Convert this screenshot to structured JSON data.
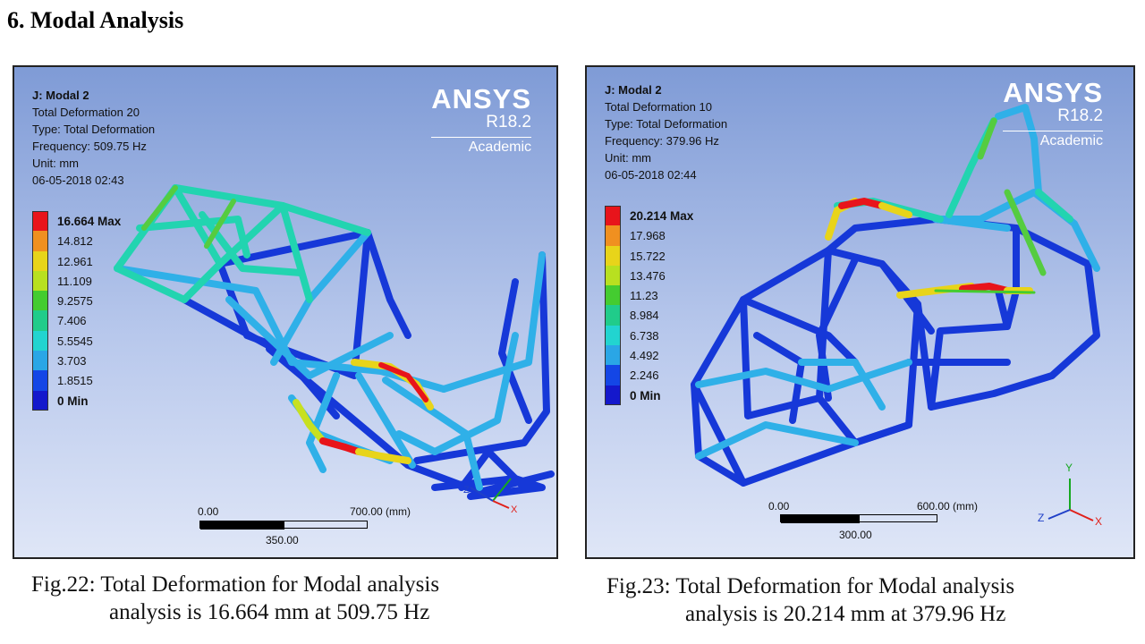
{
  "heading": "6. Modal Analysis",
  "figures": [
    {
      "info": [
        "J: Modal 2",
        "Total Deformation 20",
        "Type: Total Deformation",
        "Frequency: 509.75 Hz",
        "Unit: mm",
        "06-05-2018 02:43"
      ],
      "brand": {
        "name": "ANSYS",
        "release": "R18.2",
        "edition": "Academic"
      },
      "legend": [
        "16.664 Max",
        "14.812",
        "12.961",
        "11.109",
        "9.2575",
        "7.406",
        "5.5545",
        "3.703",
        "1.8515",
        "0 Min"
      ],
      "scale": {
        "start": "0.00",
        "end": "700.00 (mm)",
        "mid": "350.00"
      },
      "caption": [
        "Fig.22: Total Deformation for Modal analysis",
        "analysis is 16.664 mm at 509.75 Hz"
      ]
    },
    {
      "info": [
        "J: Modal 2",
        "Total Deformation 10",
        "Type: Total Deformation",
        "Frequency: 379.96 Hz",
        "Unit: mm",
        "06-05-2018 02:44"
      ],
      "brand": {
        "name": "ANSYS",
        "release": "R18.2",
        "edition": "Academic"
      },
      "legend": [
        "20.214 Max",
        "17.968",
        "15.722",
        "13.476",
        "11.23",
        "8.984",
        "6.738",
        "4.492",
        "2.246",
        "0 Min"
      ],
      "scale": {
        "start": "0.00",
        "end": "600.00 (mm)",
        "mid": "300.00"
      },
      "caption": [
        "Fig.23: Total Deformation for Modal analysis",
        "analysis is 20.214 mm at 379.96 Hz"
      ]
    }
  ],
  "axis_labels": {
    "x": "X",
    "y": "Y",
    "z": "Z"
  },
  "legend_colors": [
    "#e8141b",
    "#f09020",
    "#e8d41a",
    "#b8e020",
    "#44cc30",
    "#20cc8a",
    "#22d4d0",
    "#2aa6e6",
    "#1446e6",
    "#1418cc"
  ]
}
